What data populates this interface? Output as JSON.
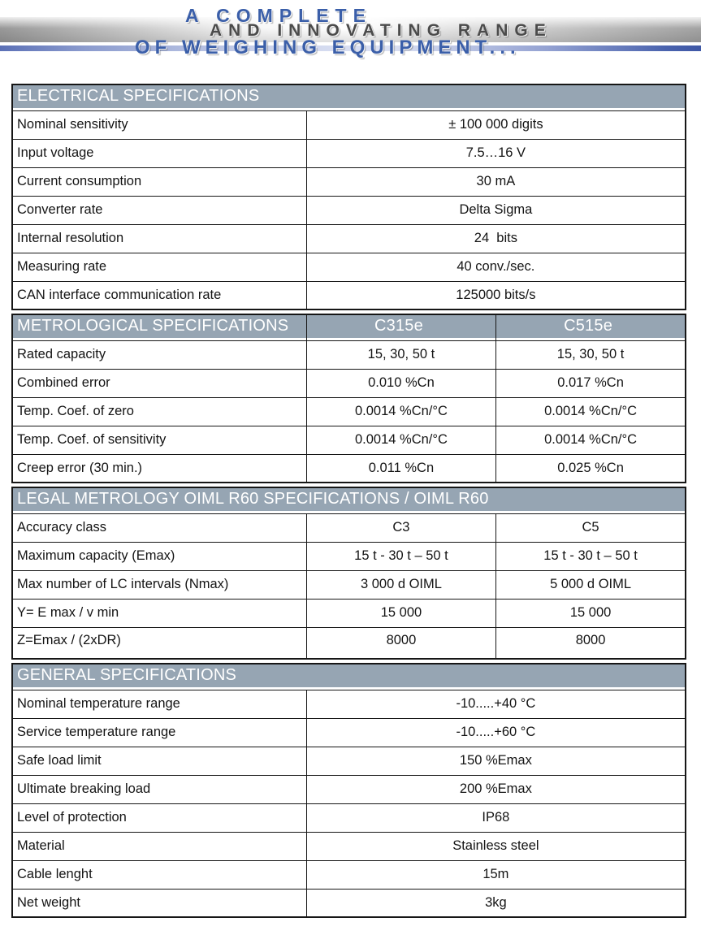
{
  "banner": {
    "line1": "A COMPLETE",
    "line2": "AND INNOVATING RANGE",
    "line3": "OF WEIGHING EQUIPMENT..."
  },
  "colors": {
    "banner_blue": "#3b5fa9",
    "banner_dark": "#4b4b4b",
    "header_bg": "#96a5b3",
    "border": "#161616",
    "line_left": "#5b70b6",
    "line_mid": "#dde2f3",
    "line_right": "#3f58a6"
  },
  "tables": [
    {
      "name": "electrical-specifications-table",
      "header": [
        "ELECTRICAL SPECIFICATIONS"
      ],
      "col_widths": [
        "43.7%",
        "56.3%"
      ],
      "rows": [
        [
          "Nominal sensitivity",
          "± 100 000 digits"
        ],
        [
          "Input voltage",
          "7.5…16 V"
        ],
        [
          "Current consumption",
          "30 mA"
        ],
        [
          "Converter rate",
          "Delta Sigma"
        ],
        [
          "Internal resolution",
          "24  bits"
        ],
        [
          "Measuring rate",
          "40 conv./sec."
        ],
        [
          "CAN interface communication rate",
          "125000 bits/s"
        ]
      ]
    },
    {
      "name": "metrological-specifications-table",
      "header": [
        "METROLOGICAL SPECIFICATIONS",
        "C315e",
        "C515e"
      ],
      "col_widths": [
        "43.7%",
        "28.15%",
        "28.15%"
      ],
      "rows": [
        [
          "Rated capacity",
          "15, 30, 50 t",
          "15, 30, 50 t"
        ],
        [
          "Combined error",
          "0.010 %Cn",
          "0.017 %Cn"
        ],
        [
          "Temp. Coef. of zero",
          "0.0014 %Cn/°C",
          "0.0014 %Cn/°C"
        ],
        [
          "Temp. Coef. of sensitivity",
          "0.0014 %Cn/°C",
          "0.0014 %Cn/°C"
        ],
        [
          "Creep error (30 min.)",
          "0.011 %Cn",
          "0.025 %Cn"
        ]
      ]
    },
    {
      "name": "legal-metrology-specifications-table",
      "header": [
        "LEGAL METROLOGY OIML R60 SPECIFICATIONS / OIML R60"
      ],
      "col_widths": [
        "43.7%",
        "28.15%",
        "28.15%"
      ],
      "tall_last_row": true,
      "rows": [
        [
          "Accuracy class",
          "C3",
          "C5"
        ],
        [
          "Maximum capacity (Emax)",
          "15 t - 30 t – 50 t",
          "15 t - 30 t – 50 t"
        ],
        [
          "Max number of LC intervals (Nmax)",
          "3 000 d OIML",
          "5 000 d OIML"
        ],
        [
          "Y= E max / v min",
          "15 000",
          "15 000"
        ],
        [
          "Z=Emax / (2xDR)",
          "8000",
          "8000"
        ]
      ]
    },
    {
      "name": "general-specifications-table",
      "header": [
        "GENERAL SPECIFICATIONS"
      ],
      "col_widths": [
        "43.7%",
        "56.3%"
      ],
      "rows": [
        [
          "Nominal temperature range",
          "-10.....+40 °C"
        ],
        [
          "Service temperature range",
          "-10.....+60 °C"
        ],
        [
          "Safe load limit",
          "150 %Emax"
        ],
        [
          "Ultimate breaking load",
          "200 %Emax"
        ],
        [
          "Level of protection",
          "IP68"
        ],
        [
          "Material",
          "Stainless steel"
        ],
        [
          "Cable lenght",
          "15m"
        ],
        [
          "Net weight",
          "3kg"
        ]
      ]
    }
  ]
}
